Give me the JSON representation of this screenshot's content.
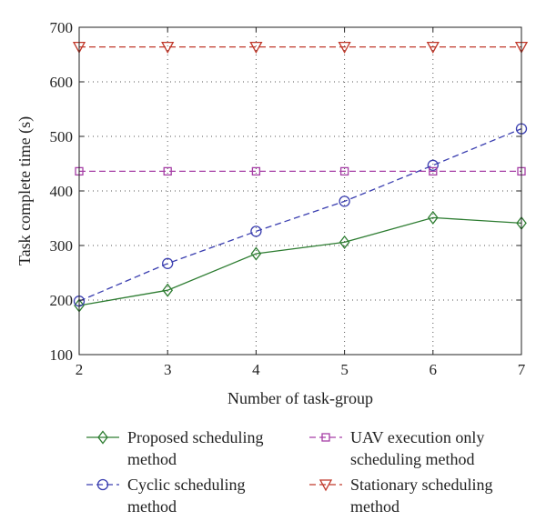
{
  "chart_data": {
    "type": "line",
    "xlabel": "Number of task-group",
    "ylabel": "Task complete time (s)",
    "x": [
      2,
      3,
      4,
      5,
      6,
      7
    ],
    "xlim": [
      2,
      7
    ],
    "ylim": [
      100,
      700
    ],
    "xticks": [
      2,
      3,
      4,
      5,
      6,
      7
    ],
    "yticks": [
      100,
      200,
      300,
      400,
      500,
      600,
      700
    ],
    "grid": true,
    "legend_position": "bottom",
    "series": [
      {
        "name": "Proposed scheduling method",
        "legend_lines": [
          "Proposed scheduling",
          "method"
        ],
        "values": [
          190,
          218,
          285,
          306,
          351,
          341
        ],
        "color": "#2e7d32",
        "marker": "diamond",
        "line_style": "solid"
      },
      {
        "name": "Cyclic scheduling method",
        "legend_lines": [
          "Cyclic scheduling",
          "method"
        ],
        "values": [
          198,
          267,
          326,
          381,
          447,
          514
        ],
        "color": "#3b3fb0",
        "marker": "circle",
        "line_style": "dashed"
      },
      {
        "name": "UAV execution only scheduling method",
        "legend_lines": [
          "UAV execution only",
          "scheduling method"
        ],
        "values": [
          436,
          436,
          436,
          436,
          436,
          436
        ],
        "color": "#a63fa6",
        "marker": "square",
        "line_style": "dashed"
      },
      {
        "name": "Stationary scheduling method",
        "legend_lines": [
          "Stationary scheduling",
          "method"
        ],
        "values": [
          664,
          664,
          664,
          664,
          664,
          664
        ],
        "color": "#c0392b",
        "marker": "triangle-down",
        "line_style": "dashed"
      }
    ]
  }
}
